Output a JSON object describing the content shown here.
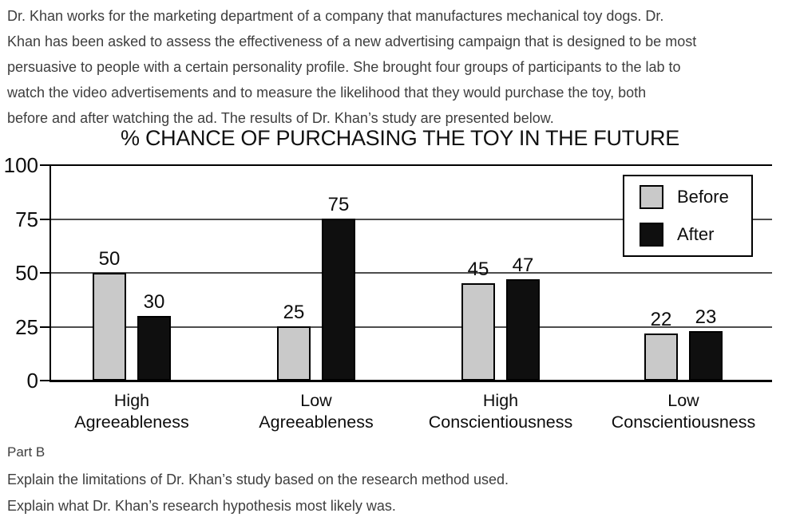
{
  "intro": {
    "lines": [
      "Dr. Khan works for the marketing department of a company that manufactures mechanical toy dogs. Dr.",
      "Khan has been asked to assess the effectiveness of a new advertising campaign that is designed to be most",
      "persuasive to people with a certain personality profile. She brought four groups of participants to the lab to",
      "watch the video advertisements and to measure the likelihood that they would purchase the toy, both",
      "before and after watching the ad. The results of Dr. Khan’s study are presented below."
    ]
  },
  "chart_data": {
    "type": "bar",
    "title": "% CHANCE OF PURCHASING THE TOY IN THE FUTURE",
    "categories": [
      {
        "line1": "High",
        "line2": "Agreeableness"
      },
      {
        "line1": "Low",
        "line2": "Agreeableness"
      },
      {
        "line1": "High",
        "line2": "Conscientiousness"
      },
      {
        "line1": "Low",
        "line2": "Conscientiousness"
      }
    ],
    "series": [
      {
        "name": "Before",
        "color": "#c9c9c9",
        "values": [
          50,
          25,
          45,
          22
        ]
      },
      {
        "name": "After",
        "color": "#0f0f0f",
        "values": [
          30,
          75,
          47,
          23
        ]
      }
    ],
    "yticks": [
      0,
      25,
      50,
      75,
      100
    ],
    "ylim": [
      0,
      100
    ],
    "xlabel": "",
    "ylabel": "",
    "grid": "horizontal",
    "legend_position": "top-right",
    "colors": {
      "before_fill": "#c9c9c9",
      "after_fill": "#0f0f0f",
      "gridline": "#4d4d4d",
      "axis": "#000000"
    }
  },
  "part_b": {
    "label": "Part B",
    "questions": [
      "Explain the limitations of Dr. Khan’s study based on the research method used.",
      "Explain what Dr. Khan’s research hypothesis most likely was."
    ]
  }
}
